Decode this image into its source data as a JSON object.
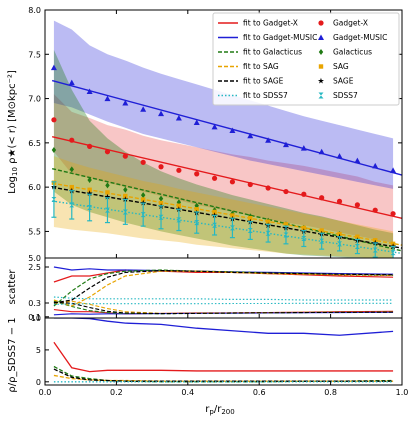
{
  "chart_data": [
    {
      "type": "line",
      "panel": "main",
      "xlabel": "r_p/r_200",
      "ylabel": "Log10 ρ★(< r) [M⊙ kpc⁻²]",
      "xlim": [
        0,
        1
      ],
      "ylim": [
        5.2,
        8.0
      ],
      "xticks": [
        "0.0",
        "0.2",
        "0.4",
        "0.6",
        "0.8",
        "1.0"
      ],
      "yticks": [
        "5.5",
        "6.0",
        "6.5",
        "7.0",
        "7.5",
        "8.0"
      ],
      "legend_position": "top-right",
      "legend_fits": [
        "fit to Gadget-X",
        "fit to Gadget-MUSIC",
        "fit to Galacticus",
        "fit to SAG",
        "fit to SAGE",
        "fit to SDSS7"
      ],
      "legend_points": [
        "Gadget-X",
        "Gadget-MUSIC",
        "Galacticus",
        "SAG",
        "SAGE",
        "SDSS7"
      ],
      "colors": {
        "Gadget-X": "#e41a1c",
        "Gadget-MUSIC": "#1f1fd6",
        "Galacticus": "#207a14",
        "SAG": "#e8a400",
        "SAGE": "#000000",
        "SDSS7": "#26b8c2"
      },
      "series": [
        {
          "name": "Gadget-X",
          "x": [
            0.025,
            0.075,
            0.125,
            0.175,
            0.225,
            0.275,
            0.325,
            0.375,
            0.425,
            0.475,
            0.525,
            0.575,
            0.625,
            0.675,
            0.725,
            0.775,
            0.825,
            0.875,
            0.925,
            0.975
          ],
          "y": [
            6.76,
            6.53,
            6.46,
            6.4,
            6.35,
            6.28,
            6.23,
            6.19,
            6.15,
            6.1,
            6.06,
            6.03,
            5.99,
            5.95,
            5.92,
            5.88,
            5.84,
            5.8,
            5.74,
            5.7
          ],
          "band_upper": [
            7.05,
            6.85,
            6.78,
            6.7,
            6.65,
            6.58,
            6.53,
            6.49,
            6.45,
            6.41,
            6.37,
            6.34,
            6.3,
            6.27,
            6.24,
            6.2,
            6.16,
            6.12,
            6.06,
            6.02
          ],
          "band_lower": [
            6.4,
            6.15,
            6.1,
            6.05,
            6.0,
            5.95,
            5.9,
            5.85,
            5.8,
            5.76,
            5.72,
            5.68,
            5.64,
            5.6,
            5.57,
            5.53,
            5.49,
            5.45,
            5.41,
            5.37
          ]
        },
        {
          "name": "Gadget-MUSIC",
          "x": [
            0.025,
            0.075,
            0.125,
            0.175,
            0.225,
            0.275,
            0.325,
            0.375,
            0.425,
            0.475,
            0.525,
            0.575,
            0.625,
            0.675,
            0.725,
            0.775,
            0.825,
            0.875,
            0.925,
            0.975
          ],
          "y": [
            7.35,
            7.18,
            7.08,
            7.0,
            6.95,
            6.88,
            6.83,
            6.78,
            6.73,
            6.68,
            6.64,
            6.58,
            6.53,
            6.48,
            6.44,
            6.4,
            6.35,
            6.3,
            6.24,
            6.19
          ],
          "band_upper": [
            7.88,
            7.78,
            7.6,
            7.5,
            7.43,
            7.35,
            7.28,
            7.22,
            7.16,
            7.1,
            7.04,
            6.98,
            6.92,
            6.86,
            6.8,
            6.75,
            6.7,
            6.65,
            6.6,
            6.55
          ],
          "band_lower": [
            6.95,
            6.9,
            6.82,
            6.74,
            6.67,
            6.6,
            6.55,
            6.5,
            6.45,
            6.4,
            6.35,
            6.3,
            6.26,
            6.22,
            6.18,
            6.14,
            6.1,
            6.06,
            6.02,
            5.98
          ]
        },
        {
          "name": "Galacticus",
          "x": [
            0.025,
            0.075,
            0.125,
            0.175,
            0.225,
            0.275,
            0.325,
            0.375,
            0.425,
            0.475,
            0.525,
            0.575,
            0.625,
            0.675,
            0.725,
            0.775,
            0.825,
            0.875,
            0.925,
            0.975
          ],
          "y": [
            6.42,
            6.2,
            6.08,
            6.02,
            5.97,
            5.91,
            5.87,
            5.83,
            5.79,
            5.74,
            5.7,
            5.67,
            5.62,
            5.58,
            5.54,
            5.5,
            5.47,
            5.43,
            5.39,
            5.35
          ],
          "band_upper": [
            7.55,
            7.1,
            6.75,
            6.55,
            6.4,
            6.28,
            6.18,
            6.1,
            6.03,
            5.97,
            5.91,
            5.86,
            5.81,
            5.76,
            5.71,
            5.67,
            5.62,
            5.57,
            5.52,
            5.48
          ],
          "band_lower": [
            5.95,
            5.8,
            5.72,
            5.66,
            5.6,
            5.55,
            5.5,
            5.46,
            5.42,
            5.38,
            5.34,
            5.31,
            5.28,
            5.25,
            5.23,
            5.22,
            5.21,
            5.2,
            5.2,
            5.2
          ]
        },
        {
          "name": "SAG",
          "x": [
            0.025,
            0.075,
            0.125,
            0.175,
            0.225,
            0.275,
            0.325,
            0.375,
            0.425,
            0.475,
            0.525,
            0.575,
            0.625,
            0.675,
            0.725,
            0.775,
            0.825,
            0.875,
            0.925,
            0.975
          ],
          "y": [
            6.05,
            6.0,
            5.97,
            5.94,
            5.9,
            5.86,
            5.82,
            5.79,
            5.75,
            5.72,
            5.68,
            5.65,
            5.61,
            5.58,
            5.54,
            5.51,
            5.47,
            5.44,
            5.4,
            5.36
          ],
          "band_upper": [
            6.35,
            6.28,
            6.22,
            6.17,
            6.12,
            6.07,
            6.03,
            5.98,
            5.94,
            5.9,
            5.86,
            5.82,
            5.78,
            5.74,
            5.7,
            5.66,
            5.62,
            5.58,
            5.54,
            5.5
          ],
          "band_lower": [
            5.55,
            5.52,
            5.5,
            5.48,
            5.45,
            5.42,
            5.4,
            5.38,
            5.35,
            5.33,
            5.31,
            5.29,
            5.27,
            5.25,
            5.24,
            5.23,
            5.22,
            5.21,
            5.2,
            5.2
          ]
        },
        {
          "name": "SAGE",
          "x": [
            0.025,
            0.075,
            0.125,
            0.175,
            0.225,
            0.275,
            0.325,
            0.375,
            0.425,
            0.475,
            0.525,
            0.575,
            0.625,
            0.675,
            0.725,
            0.775,
            0.825,
            0.875,
            0.925,
            0.975
          ],
          "y": [
            6.0,
            5.96,
            5.93,
            5.89,
            5.86,
            5.82,
            5.78,
            5.75,
            5.71,
            5.68,
            5.64,
            5.61,
            5.57,
            5.54,
            5.5,
            5.47,
            5.44,
            5.4,
            5.37,
            5.33
          ]
        },
        {
          "name": "SDSS7",
          "x": [
            0.025,
            0.075,
            0.125,
            0.175,
            0.225,
            0.275,
            0.325,
            0.375,
            0.425,
            0.475,
            0.525,
            0.575,
            0.625,
            0.675,
            0.725,
            0.775,
            0.825,
            0.875,
            0.925,
            0.975
          ],
          "y": [
            5.86,
            5.8,
            5.77,
            5.74,
            5.72,
            5.69,
            5.66,
            5.63,
            5.6,
            5.57,
            5.54,
            5.51,
            5.48,
            5.46,
            5.42,
            5.39,
            5.36,
            5.33,
            5.29,
            5.26
          ],
          "err": [
            0.2,
            0.16,
            0.15,
            0.14,
            0.14,
            0.13,
            0.13,
            0.12,
            0.12,
            0.11,
            0.11,
            0.1,
            0.1,
            0.1,
            0.09,
            0.09,
            0.08,
            0.08,
            0.08,
            0.07
          ]
        }
      ]
    },
    {
      "type": "line",
      "panel": "scatter",
      "ylabel": "scatter",
      "yticks": [
        "0.1",
        "0.3",
        "2.5",
        "5.0"
      ],
      "series": [
        {
          "name": "Gadget-X",
          "x": [
            0.025,
            0.075,
            0.125,
            0.175,
            0.225,
            0.325,
            0.425,
            0.525,
            0.625,
            0.725,
            0.825,
            0.975
          ],
          "y": [
            0.6,
            0.7,
            0.7,
            0.75,
            0.8,
            0.78,
            0.76,
            0.76,
            0.74,
            0.72,
            0.7,
            0.68
          ]
        },
        {
          "name": "Gadget-MUSIC",
          "x": [
            0.025,
            0.075,
            0.125,
            0.175,
            0.225,
            0.325,
            0.425,
            0.525,
            0.625,
            0.725,
            0.825,
            0.975
          ],
          "y": [
            0.85,
            0.8,
            0.82,
            0.8,
            0.8,
            0.79,
            0.78,
            0.77,
            0.76,
            0.75,
            0.74,
            0.73
          ]
        },
        {
          "name": "Galacticus",
          "x": [
            0.025,
            0.075,
            0.125,
            0.175,
            0.225,
            0.325,
            0.425,
            0.525,
            0.625,
            0.725,
            0.825,
            0.975
          ],
          "y": [
            0.2,
            0.45,
            0.65,
            0.74,
            0.78,
            0.8,
            0.78,
            0.77,
            0.75,
            0.74,
            0.72,
            0.71
          ]
        },
        {
          "name": "SAG",
          "x": [
            0.025,
            0.075,
            0.125,
            0.175,
            0.225,
            0.325,
            0.425,
            0.525,
            0.625,
            0.725,
            0.825,
            0.975
          ],
          "y": [
            0.3,
            0.2,
            0.35,
            0.55,
            0.7,
            0.78,
            0.78,
            0.76,
            0.74,
            0.73,
            0.72,
            0.71
          ]
        },
        {
          "name": "SAGE",
          "x": [
            0.025,
            0.075,
            0.125,
            0.175,
            0.225,
            0.325,
            0.425,
            0.525,
            0.625,
            0.725,
            0.825,
            0.975
          ],
          "y": [
            0.25,
            0.3,
            0.5,
            0.68,
            0.76,
            0.79,
            0.78,
            0.76,
            0.75,
            0.74,
            0.73,
            0.72
          ]
        },
        {
          "name": "SDSS7",
          "x": [
            0.025,
            0.075,
            0.125,
            0.175,
            0.225,
            0.325,
            0.425,
            0.525,
            0.625,
            0.725,
            0.825,
            0.975
          ],
          "y": [
            0.35,
            0.33,
            0.32,
            0.32,
            0.32,
            0.32,
            0.32,
            0.31,
            0.31,
            0.3,
            0.3,
            0.3
          ]
        }
      ]
    },
    {
      "type": "line",
      "panel": "ratio",
      "ylabel": "ρ/ρ_SDSS7 − 1",
      "xlabel": "r_p/r_200",
      "ylim": [
        -0.5,
        10
      ],
      "yticks": [
        "0",
        "5",
        "10"
      ],
      "xticks": [
        "0.0",
        "0.2",
        "0.4",
        "0.6",
        "0.8",
        "1.0"
      ],
      "series": [
        {
          "name": "Gadget-X",
          "x": [
            0.025,
            0.075,
            0.125,
            0.175,
            0.225,
            0.325,
            0.425,
            0.525,
            0.625,
            0.725,
            0.825,
            0.975
          ],
          "y": [
            6.2,
            2.2,
            1.6,
            1.8,
            1.8,
            1.8,
            1.7,
            1.7,
            1.7,
            1.7,
            1.7,
            1.7
          ]
        },
        {
          "name": "Gadget-MUSIC",
          "x": [
            0.025,
            0.075,
            0.125,
            0.175,
            0.225,
            0.325,
            0.425,
            0.525,
            0.625,
            0.725,
            0.825,
            0.975
          ],
          "y": [
            10.5,
            10.4,
            9.9,
            9.5,
            9.2,
            9.0,
            8.4,
            8.0,
            7.6,
            7.6,
            7.3,
            7.9
          ]
        },
        {
          "name": "Galacticus",
          "x": [
            0.025,
            0.075,
            0.125,
            0.175,
            0.225,
            0.325,
            0.425,
            0.525,
            0.625,
            0.725,
            0.825,
            0.975
          ],
          "y": [
            2.4,
            0.9,
            0.5,
            0.2,
            0.1,
            0.0,
            0.0,
            0.0,
            0.0,
            0.1,
            0.1,
            0.2
          ]
        },
        {
          "name": "SAG",
          "x": [
            0.025,
            0.075,
            0.125,
            0.175,
            0.225,
            0.325,
            0.425,
            0.525,
            0.625,
            0.725,
            0.825,
            0.975
          ],
          "y": [
            1.0,
            0.5,
            0.3,
            0.2,
            0.2,
            0.1,
            0.1,
            0.1,
            0.1,
            0.1,
            0.1,
            0.1
          ]
        },
        {
          "name": "SAGE",
          "x": [
            0.025,
            0.075,
            0.125,
            0.175,
            0.225,
            0.325,
            0.425,
            0.525,
            0.625,
            0.725,
            0.825,
            0.975
          ],
          "y": [
            2.0,
            0.7,
            0.3,
            0.2,
            0.1,
            0.1,
            0.1,
            0.1,
            0.1,
            0.1,
            0.1,
            0.1
          ]
        },
        {
          "name": "SDSS7",
          "x": [
            0.025,
            0.075,
            0.125,
            0.175,
            0.225,
            0.325,
            0.425,
            0.525,
            0.625,
            0.725,
            0.825,
            0.975
          ],
          "y": [
            0,
            0,
            0,
            0,
            0,
            0,
            0,
            0,
            0,
            0,
            0,
            0
          ]
        }
      ]
    }
  ]
}
